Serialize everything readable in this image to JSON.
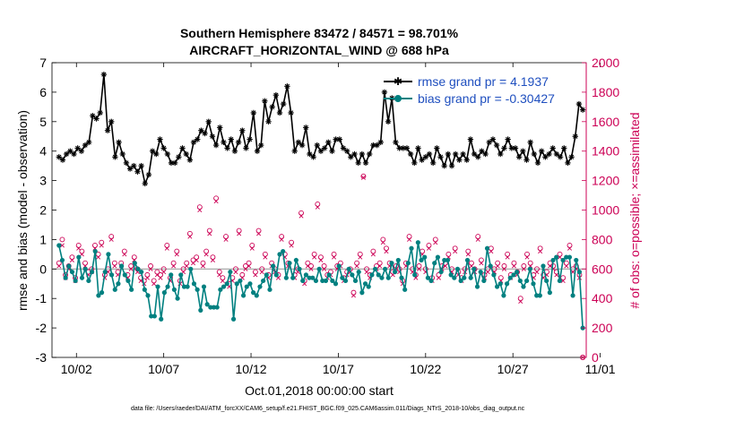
{
  "chart_data": {
    "type": "line",
    "title_line1": "Southern Hemisphere 83472 / 84571 = 98.701%",
    "title_line2": "AIRCRAFT_HORIZONTAL_WIND @ 688 hPa",
    "xlabel": "Oct.01,2018 00:00:00 start",
    "ylabel_left": "rmse and bias (model - observation)",
    "ylabel_right": "# of obs: o=possible; ×=assimilated",
    "footer": "data file: /Users/raeder/DAI/ATM_forcXX/CAM6_setup/f.e21.FHIST_BGC.f09_025.CAM6assim.011/Diags_NTrS_2018-10/obs_diag_output.nc",
    "xlim": [
      0.6,
      31.2
    ],
    "ylim_left": [
      -3,
      7
    ],
    "ylim_right": [
      0,
      2000
    ],
    "x_ticks": [
      2,
      7,
      12,
      17,
      22,
      27,
      32
    ],
    "x_tick_labels": [
      "10/02",
      "10/07",
      "10/12",
      "10/17",
      "10/22",
      "10/27",
      "11/01"
    ],
    "y_left_ticks": [
      -3,
      -2,
      -1,
      0,
      1,
      2,
      3,
      4,
      5,
      6,
      7
    ],
    "y_left_tick_labels": [
      "-3",
      "-2",
      "-1",
      "0",
      "1",
      "2",
      "3",
      "4",
      "5",
      "6",
      "7"
    ],
    "y_right_ticks": [
      0,
      200,
      400,
      600,
      800,
      1000,
      1200,
      1400,
      1600,
      1800,
      2000
    ],
    "y_right_tick_labels": [
      "0",
      "200",
      "400",
      "600",
      "800",
      "1000",
      "1200",
      "1400",
      "1600",
      "1800",
      "2000"
    ],
    "colors": {
      "rmse": "#000000",
      "bias": "#008080",
      "obs": "#cc0055",
      "zero_line": "#a0a0a0",
      "legend_text": "#1f4fbf"
    },
    "series": [
      {
        "name": "rmse grand pr = 4.1937",
        "values": [
          3.8,
          3.7,
          3.9,
          4.0,
          3.9,
          4.1,
          4.0,
          4.2,
          4.3,
          5.2,
          5.1,
          5.3,
          6.6,
          4.7,
          5.0,
          3.8,
          4.3,
          3.9,
          3.6,
          3.4,
          3.5,
          3.3,
          3.5,
          2.9,
          3.2,
          4.0,
          3.9,
          4.4,
          4.1,
          3.9,
          3.6,
          3.6,
          3.8,
          4.1,
          3.9,
          3.7,
          4.3,
          4.4,
          4.7,
          4.6,
          5.0,
          4.5,
          4.2,
          4.8,
          4.3,
          4.1,
          4.4,
          4.0,
          4.3,
          4.7,
          4.1,
          4.4,
          5.3,
          4.0,
          4.2,
          5.7,
          5.0,
          5.5,
          5.9,
          5.3,
          5.6,
          6.2,
          5.3,
          4.0,
          4.3,
          4.2,
          4.8,
          3.9,
          3.8,
          4.2,
          4.0,
          4.1,
          4.3,
          4.0,
          4.4,
          4.4,
          4.1,
          4.0,
          3.8,
          3.9,
          3.6,
          3.9,
          3.6,
          3.9,
          4.2,
          4.2,
          4.3,
          6.0,
          5.0,
          5.8,
          4.3,
          4.1,
          4.1,
          4.1,
          3.9,
          3.6,
          4.1,
          3.7,
          3.8,
          3.9,
          3.6,
          4.1,
          3.8,
          3.5,
          3.9,
          3.5,
          3.9,
          3.7,
          3.9,
          3.7,
          4.4,
          3.9,
          3.8,
          4.0,
          3.9,
          4.3,
          4.4,
          4.2,
          3.9,
          4.1,
          4.4,
          4.1,
          4.1,
          3.8,
          4.0,
          3.7,
          4.3,
          3.9,
          3.6,
          4.0,
          3.8,
          3.9,
          4.1,
          3.9,
          3.8,
          4.1,
          3.6,
          3.8,
          4.5,
          5.6,
          5.4
        ]
      },
      {
        "name": "bias grand pr = -0.30427",
        "values": [
          0.8,
          0.3,
          -0.3,
          0.1,
          -0.1,
          -0.4,
          0.4,
          -0.3,
          0.0,
          -0.4,
          -0.1,
          0.6,
          -0.9,
          -0.8,
          -0.1,
          0.5,
          -0.2,
          -0.7,
          -0.5,
          0.1,
          -0.2,
          -0.4,
          -0.7,
          0.2,
          0.0,
          -0.1,
          -0.7,
          -0.9,
          -1.6,
          -1.6,
          -0.6,
          -1.7,
          -0.8,
          -0.6,
          -0.2,
          -0.7,
          -1.0,
          -0.2,
          -0.6,
          -0.6,
          0.0,
          -0.5,
          -0.7,
          -1.4,
          -0.6,
          -1.2,
          -1.3,
          -1.3,
          -1.3,
          -0.7,
          -0.6,
          -0.5,
          -0.1,
          -1.7,
          -0.5,
          -0.4,
          -0.9,
          -0.6,
          -0.5,
          -0.8,
          -0.9,
          -0.6,
          -0.4,
          -0.2,
          -0.7,
          0.1,
          -0.2,
          0.5,
          0.6,
          -0.3,
          0.2,
          -0.3,
          0.3,
          0.0,
          -0.4,
          -0.2,
          -0.3,
          -0.3,
          -0.4,
          0.0,
          -0.4,
          -0.4,
          -0.2,
          -0.4,
          -0.5,
          0.1,
          -0.3,
          -0.4,
          0.0,
          -0.2,
          -0.4,
          -0.1,
          -0.8,
          -0.5,
          -0.6,
          -0.2,
          0.0,
          -0.2,
          -0.3,
          0.0,
          -0.3,
          0.2,
          -0.1,
          0.3,
          -0.3,
          -0.7,
          0.2,
          0.7,
          -0.2,
          0.9,
          0.3,
          0.4,
          -0.3,
          -0.4,
          0.2,
          0.4,
          -0.1,
          0.3,
          0.3,
          -0.2,
          -0.3,
          0.0,
          -0.4,
          -0.3,
          0.3,
          -0.3,
          0.0,
          -0.6,
          -0.1,
          -0.4,
          0.7,
          0.1,
          -0.2,
          -0.6,
          -0.5,
          -0.9,
          -0.5,
          -0.3,
          -0.2,
          -0.1,
          -0.4,
          -0.6,
          -0.4,
          0.0,
          -0.5,
          -0.9,
          -0.9,
          0.1,
          -0.4,
          -0.8,
          0.3,
          0.4,
          -0.4,
          0.3,
          0.4,
          0.4,
          -0.9,
          0.3,
          -0.1,
          -2.0
        ]
      },
      {
        "name": "obs possible",
        "values": [
          640,
          800,
          560,
          620,
          680,
          540,
          760,
          720,
          640,
          580,
          600,
          760,
          700,
          780,
          560,
          600,
          820,
          640,
          580,
          640,
          720,
          560,
          620,
          680,
          600,
          540,
          520,
          560,
          620,
          520,
          580,
          560,
          600,
          760,
          540,
          640,
          720,
          520,
          600,
          640,
          840,
          660,
          680,
          1020,
          640,
          720,
          860,
          680,
          1080,
          580,
          540,
          820,
          500,
          540,
          600,
          860,
          560,
          620,
          640,
          760,
          580,
          860,
          600,
          700,
          560,
          640,
          600,
          560,
          820,
          700,
          640,
          780,
          560,
          600,
          980,
          520,
          640,
          620,
          700,
          1040,
          680,
          620,
          560,
          580,
          700,
          620,
          640,
          540,
          580,
          600,
          440,
          640,
          700,
          1230,
          600,
          560,
          720,
          620,
          640,
          800,
          740,
          640,
          580,
          620,
          600,
          520,
          640,
          820,
          600,
          560,
          620,
          720,
          600,
          760,
          540,
          800,
          560,
          620,
          640,
          700,
          600,
          740,
          580,
          540,
          600,
          720,
          640,
          600,
          820,
          660,
          560,
          600,
          740,
          600,
          640,
          540,
          620,
          700,
          560,
          640,
          580,
          400,
          620,
          700,
          640,
          560,
          600,
          740,
          560,
          580,
          640,
          620,
          580,
          700,
          540,
          640,
          760,
          600,
          620,
          560,
          0
        ]
      },
      {
        "name": "obs assimilated",
        "values": [
          620,
          760,
          540,
          600,
          660,
          520,
          740,
          700,
          620,
          560,
          580,
          740,
          680,
          760,
          540,
          580,
          800,
          620,
          560,
          620,
          700,
          540,
          600,
          660,
          580,
          520,
          500,
          540,
          600,
          500,
          560,
          540,
          580,
          740,
          520,
          620,
          700,
          500,
          580,
          620,
          820,
          640,
          660,
          1000,
          620,
          700,
          840,
          660,
          1060,
          560,
          520,
          800,
          480,
          520,
          580,
          840,
          540,
          600,
          620,
          740,
          560,
          840,
          580,
          680,
          540,
          620,
          580,
          540,
          800,
          680,
          620,
          760,
          540,
          580,
          960,
          500,
          620,
          600,
          680,
          1020,
          660,
          600,
          540,
          560,
          680,
          600,
          620,
          520,
          560,
          580,
          420,
          620,
          680,
          1220,
          580,
          540,
          700,
          600,
          620,
          780,
          720,
          620,
          560,
          600,
          580,
          500,
          620,
          800,
          580,
          540,
          600,
          700,
          580,
          740,
          520,
          780,
          540,
          600,
          620,
          680,
          580,
          720,
          560,
          520,
          580,
          700,
          620,
          580,
          800,
          640,
          540,
          580,
          720,
          580,
          620,
          520,
          600,
          680,
          540,
          620,
          560,
          380,
          600,
          680,
          620,
          540,
          580,
          720,
          540,
          560,
          620,
          600,
          560,
          680,
          520,
          620,
          740,
          580,
          600,
          540,
          0
        ]
      }
    ]
  }
}
